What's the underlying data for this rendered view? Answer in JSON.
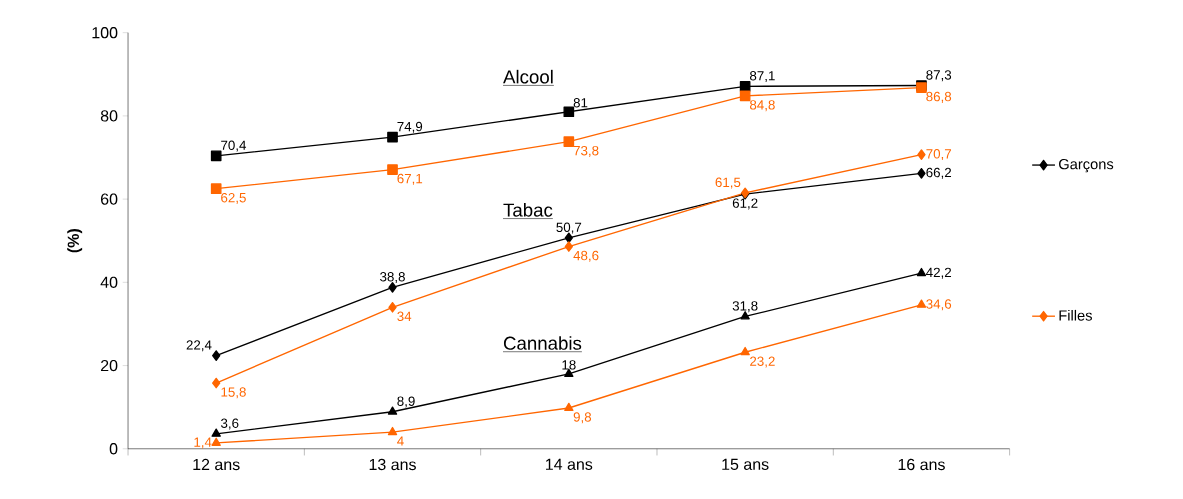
{
  "chart_data": {
    "type": "line",
    "ylabel": "(%)",
    "categories": [
      "12 ans",
      "13 ans",
      "14 ans",
      "15 ans",
      "16 ans"
    ],
    "ylim": [
      0,
      100
    ],
    "yticks": [
      0,
      20,
      40,
      60,
      80,
      100
    ],
    "grid": false,
    "legend": "right",
    "annotations": [
      "Alcool",
      "Tabac",
      "Cannabis"
    ],
    "series": [
      {
        "color": "#000000",
        "marker": "square",
        "values": [
          70.4,
          74.9,
          81,
          87.1,
          87.3
        ],
        "value_labels": [
          "70,4",
          "74,9",
          "81",
          "87,1",
          "87,3"
        ]
      },
      {
        "color": "#ff6600",
        "marker": "square",
        "values": [
          62.5,
          67.1,
          73.8,
          84.8,
          86.8
        ],
        "value_labels": [
          "62,5",
          "67,1",
          "73,8",
          "84,8",
          "86,8"
        ]
      },
      {
        "name": "Garçons",
        "color": "#000000",
        "marker": "diamond",
        "values": [
          22.4,
          38.8,
          50.7,
          61.2,
          66.2
        ],
        "value_labels": [
          "22,4",
          "38,8",
          "50,7",
          "61,2",
          "66,2"
        ]
      },
      {
        "name": "Filles",
        "color": "#ff6600",
        "marker": "diamond",
        "values": [
          15.8,
          34,
          48.6,
          61.5,
          70.7
        ],
        "value_labels": [
          "15,8",
          "34",
          "48,6",
          "61,5",
          "70,7"
        ]
      },
      {
        "color": "#000000",
        "marker": "triangle",
        "values": [
          3.6,
          8.9,
          18,
          31.8,
          42.2
        ],
        "value_labels": [
          "3,6",
          "8,9",
          "18",
          "31,8",
          "42,2"
        ]
      },
      {
        "color": "#ff6600",
        "marker": "triangle",
        "values": [
          1.4,
          4,
          9.8,
          23.2,
          34.6
        ],
        "value_labels": [
          "1,4",
          "4",
          "9,8",
          "23,2",
          "34,6"
        ]
      }
    ]
  }
}
